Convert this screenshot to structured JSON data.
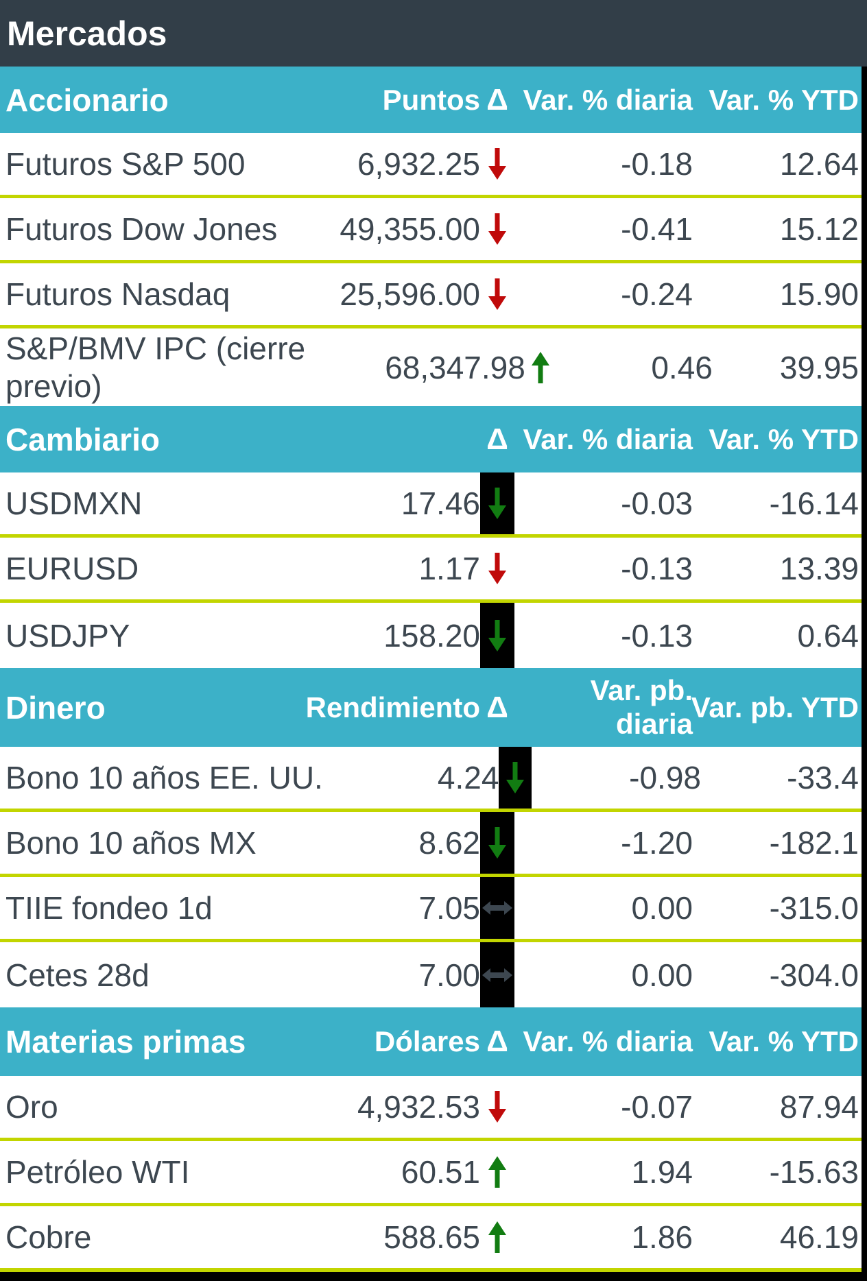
{
  "title": "Mercados",
  "colors": {
    "title_bg": "#323e48",
    "section_header_bg": "#3cb1c8",
    "divider": "#c2d500",
    "text": "#3d4750",
    "header_text": "#ffffff",
    "arrow_red": "#c00a0a",
    "arrow_green": "#127c12",
    "arrow_flat": "#3d4750",
    "delta_cell_bg": "#000000"
  },
  "chart_data": {
    "type": "table",
    "title": "Mercados",
    "sections": [
      {
        "key": "accionario",
        "header": {
          "label": "Accionario",
          "value": "Puntos",
          "delta": "Δ",
          "daily": "Var. % diaria",
          "ytd": "Var. % YTD"
        },
        "rows": [
          {
            "label": "Futuros S&P 500",
            "value": "6,932.25",
            "direction": "down",
            "arrow_color": "red",
            "black_bg": false,
            "daily": "-0.18",
            "ytd": "12.64"
          },
          {
            "label": "Futuros Dow Jones",
            "value": "49,355.00",
            "direction": "down",
            "arrow_color": "red",
            "black_bg": false,
            "daily": "-0.41",
            "ytd": "15.12"
          },
          {
            "label": "Futuros Nasdaq",
            "value": "25,596.00",
            "direction": "down",
            "arrow_color": "red",
            "black_bg": false,
            "daily": "-0.24",
            "ytd": "15.90"
          },
          {
            "label": "S&P/BMV IPC (cierre previo)",
            "value": "68,347.98",
            "direction": "up",
            "arrow_color": "green",
            "black_bg": false,
            "daily": "0.46",
            "ytd": "39.95",
            "tall": true
          }
        ]
      },
      {
        "key": "cambiario",
        "header": {
          "label": "Cambiario",
          "value": "",
          "delta": "Δ",
          "daily": "Var. % diaria",
          "ytd": "Var. % YTD"
        },
        "rows": [
          {
            "label": "USDMXN",
            "value": "17.46",
            "direction": "down",
            "arrow_color": "green",
            "black_bg": true,
            "daily": "-0.03",
            "ytd": "-16.14"
          },
          {
            "label": "EURUSD",
            "value": "1.17",
            "direction": "down",
            "arrow_color": "red",
            "black_bg": false,
            "daily": "-0.13",
            "ytd": "13.39"
          },
          {
            "label": "USDJPY",
            "value": "158.20",
            "direction": "down",
            "arrow_color": "green",
            "black_bg": true,
            "daily": "-0.13",
            "ytd": "0.64"
          }
        ]
      },
      {
        "key": "dinero",
        "header": {
          "label": "Dinero",
          "value": "Rendimiento",
          "delta": "Δ",
          "daily": "Var. pb. diaria",
          "ytd": "Var. pb. YTD",
          "daily_two_line": true
        },
        "rows": [
          {
            "label": "Bono 10 años EE. UU.",
            "value": "4.24",
            "direction": "down",
            "arrow_color": "green",
            "black_bg": true,
            "daily": "-0.98",
            "ytd": "-33.4"
          },
          {
            "label": "Bono 10 años MX",
            "value": "8.62",
            "direction": "down",
            "arrow_color": "green",
            "black_bg": true,
            "daily": "-1.20",
            "ytd": "-182.1"
          },
          {
            "label": "TIIE fondeo 1d",
            "value": "7.05",
            "direction": "flat",
            "arrow_color": "slate",
            "black_bg": true,
            "daily": "0.00",
            "ytd": "-315.0"
          },
          {
            "label": "Cetes 28d",
            "value": "7.00",
            "direction": "flat",
            "arrow_color": "slate",
            "black_bg": true,
            "daily": "0.00",
            "ytd": "-304.0"
          }
        ]
      },
      {
        "key": "materias",
        "header": {
          "label": "Materias primas",
          "value": "Dólares",
          "delta": "Δ",
          "daily": "Var. % diaria",
          "ytd": "Var. % YTD"
        },
        "rows": [
          {
            "label": "Oro",
            "value": "4,932.53",
            "direction": "down",
            "arrow_color": "red",
            "black_bg": false,
            "daily": "-0.07",
            "ytd": "87.94"
          },
          {
            "label": "Petróleo WTI",
            "value": "60.51",
            "direction": "up",
            "arrow_color": "green",
            "black_bg": false,
            "daily": "1.94",
            "ytd": "-15.63"
          },
          {
            "label": "Cobre",
            "value": "588.65",
            "direction": "up",
            "arrow_color": "green",
            "black_bg": false,
            "daily": "1.86",
            "ytd": "46.19"
          }
        ]
      }
    ]
  }
}
